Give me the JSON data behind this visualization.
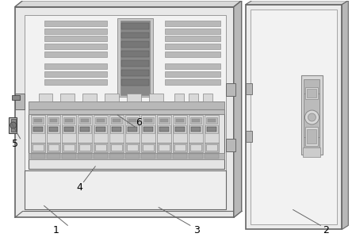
{
  "bg_color": "#ffffff",
  "lc": "#666666",
  "lc_dark": "#444444",
  "lc_light": "#999999",
  "gray_light": "#d8d8d8",
  "gray_mid": "#b8b8b8",
  "gray_dark": "#888888",
  "gray_fill": "#e8e8e8",
  "gray_inner": "#f2f2f2",
  "stripe_color": "#aaaaaa",
  "figw": 4.44,
  "figh": 3.04,
  "dpi": 100
}
